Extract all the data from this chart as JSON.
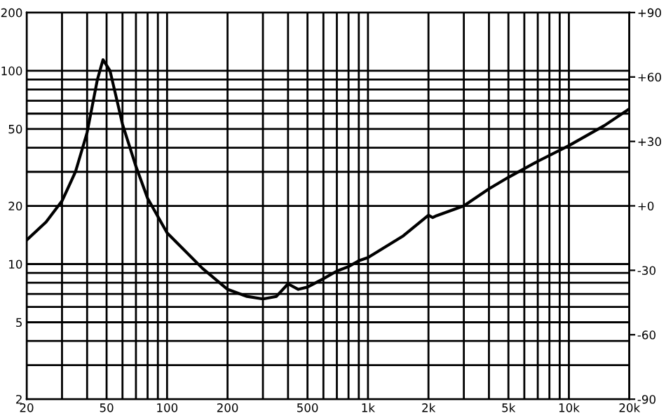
{
  "chart_data": {
    "type": "line",
    "log": "xy",
    "grid": true,
    "marker": "none",
    "line_style": "solid",
    "x": [
      20,
      25,
      30,
      35,
      40,
      45,
      48,
      52,
      55,
      60,
      70,
      80,
      100,
      150,
      200,
      250,
      300,
      350,
      400,
      450,
      500,
      600,
      700,
      800,
      900,
      1000,
      1500,
      2000,
      2100,
      2200,
      3000,
      4000,
      5000,
      7000,
      10000,
      15000,
      20000
    ],
    "series": [
      {
        "color": "#000000",
        "values": [
          13.3,
          16.5,
          21.2,
          30,
          47.9,
          90,
          114,
          100,
          78,
          52.9,
          32,
          21.9,
          14.5,
          9.5,
          7.4,
          6.8,
          6.6,
          6.8,
          7.9,
          7.4,
          7.6,
          8.4,
          9.2,
          9.7,
          10.4,
          10.8,
          14,
          17.9,
          17.4,
          17.8,
          20,
          24.5,
          28.1,
          34,
          41,
          52,
          63.5
        ]
      }
    ],
    "xlim": [
      20,
      20000
    ],
    "xticks": [
      20,
      {
        "value": 30,
        "label": null
      },
      {
        "value": 40,
        "label": null
      },
      50,
      {
        "value": 60,
        "label": null
      },
      {
        "value": 70,
        "label": null
      },
      {
        "value": 80,
        "label": null
      },
      {
        "value": 90,
        "label": null
      },
      100,
      200,
      {
        "value": 300,
        "label": null
      },
      {
        "value": 400,
        "label": null
      },
      500,
      {
        "value": 600,
        "label": null
      },
      {
        "value": 700,
        "label": null
      },
      {
        "value": 800,
        "label": null
      },
      {
        "value": 900,
        "label": null
      },
      {
        "value": 1000,
        "label": "1k"
      },
      {
        "value": 2000,
        "label": "2k"
      },
      {
        "value": 3000,
        "label": null
      },
      {
        "value": 4000,
        "label": null
      },
      {
        "value": 5000,
        "label": "5k"
      },
      {
        "value": 6000,
        "label": null
      },
      {
        "value": 7000,
        "label": null
      },
      {
        "value": 8000,
        "label": null
      },
      {
        "value": 9000,
        "label": null
      },
      {
        "value": 10000,
        "label": "10k"
      },
      {
        "value": 20000,
        "label": "20k"
      }
    ],
    "ylim": [
      2,
      200
    ],
    "yticks": [
      2,
      {
        "value": 3,
        "label": null
      },
      {
        "value": 4,
        "label": null
      },
      5,
      {
        "value": 6,
        "label": null
      },
      {
        "value": 7,
        "label": null
      },
      {
        "value": 8,
        "label": null
      },
      {
        "value": 9,
        "label": null
      },
      10,
      20,
      {
        "value": 30,
        "label": null
      },
      {
        "value": 40,
        "label": null
      },
      50,
      {
        "value": 60,
        "label": null
      },
      {
        "value": 70,
        "label": null
      },
      {
        "value": 80,
        "label": null
      },
      {
        "value": 90,
        "label": null
      },
      100,
      200
    ],
    "y2lim": [
      -90,
      90
    ],
    "y2ticks": [
      {
        "value": -90,
        "label": "-90"
      },
      {
        "value": -60,
        "label": "-60"
      },
      {
        "value": -30,
        "label": "-30"
      },
      {
        "value": 0,
        "label": "+0"
      },
      {
        "value": 30,
        "label": "+30"
      },
      {
        "value": 60,
        "label": "+60"
      },
      {
        "value": 90,
        "label": "+90"
      }
    ]
  }
}
